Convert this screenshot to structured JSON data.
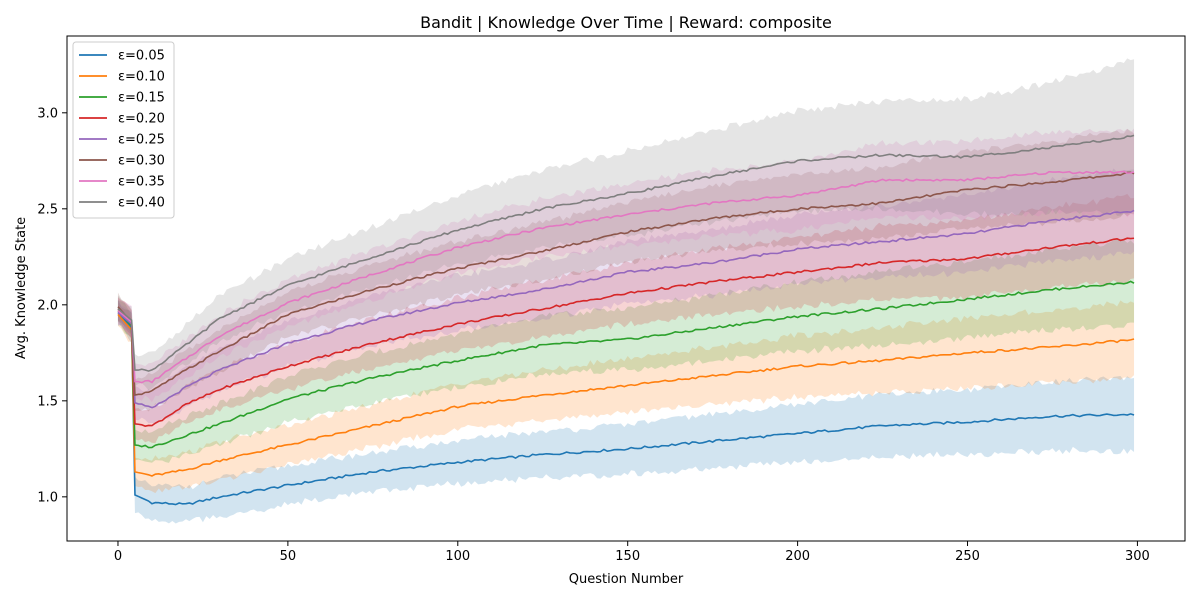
{
  "chart_data": {
    "type": "line",
    "title": "Bandit | Knowledge Over Time | Reward: composite",
    "xlabel": "Question Number",
    "ylabel": "Avg. Knowledge State",
    "xlim": [
      -15,
      314
    ],
    "ylim": [
      0.77,
      3.4
    ],
    "xticks": [
      0,
      50,
      100,
      150,
      200,
      250,
      300
    ],
    "yticks": [
      1.0,
      1.5,
      2.0,
      2.5,
      3.0
    ],
    "xtick_labels": [
      "0",
      "50",
      "100",
      "150",
      "200",
      "250",
      "300"
    ],
    "ytick_labels": [
      "1.0",
      "1.5",
      "2.0",
      "2.5",
      "3.0"
    ],
    "legend_position": "top-left",
    "grid": false,
    "band": "shaded band around each series",
    "series": [
      {
        "name": "ε=0.05",
        "color": "#1f77b4",
        "x": [
          0,
          4,
          5,
          10,
          20,
          30,
          50,
          75,
          100,
          125,
          150,
          175,
          200,
          225,
          250,
          275,
          300
        ],
        "y": [
          1.96,
          1.88,
          1.01,
          0.97,
          0.96,
          1.0,
          1.06,
          1.13,
          1.18,
          1.22,
          1.25,
          1.29,
          1.33,
          1.37,
          1.39,
          1.42,
          1.43
        ],
        "band": [
          0.06,
          0.07,
          0.08,
          0.09,
          0.09,
          0.1,
          0.1,
          0.1,
          0.11,
          0.12,
          0.13,
          0.14,
          0.15,
          0.16,
          0.17,
          0.18,
          0.19
        ]
      },
      {
        "name": "ε=0.10",
        "color": "#ff7f0e",
        "x": [
          0,
          4,
          5,
          10,
          20,
          30,
          50,
          75,
          100,
          125,
          150,
          175,
          200,
          225,
          250,
          275,
          300
        ],
        "y": [
          1.95,
          1.87,
          1.13,
          1.11,
          1.14,
          1.19,
          1.27,
          1.37,
          1.47,
          1.53,
          1.58,
          1.63,
          1.68,
          1.71,
          1.75,
          1.78,
          1.82
        ],
        "band": [
          0.06,
          0.07,
          0.08,
          0.09,
          0.09,
          0.1,
          0.1,
          0.11,
          0.12,
          0.13,
          0.14,
          0.15,
          0.16,
          0.17,
          0.18,
          0.19,
          0.2
        ]
      },
      {
        "name": "ε=0.15",
        "color": "#2ca02c",
        "x": [
          0,
          4,
          5,
          10,
          20,
          30,
          50,
          75,
          100,
          125,
          150,
          175,
          200,
          225,
          250,
          275,
          300
        ],
        "y": [
          1.97,
          1.89,
          1.27,
          1.26,
          1.32,
          1.38,
          1.51,
          1.62,
          1.71,
          1.79,
          1.82,
          1.88,
          1.94,
          1.98,
          2.03,
          2.08,
          2.12
        ],
        "band": [
          0.06,
          0.07,
          0.08,
          0.09,
          0.1,
          0.11,
          0.12,
          0.13,
          0.14,
          0.15,
          0.16,
          0.17,
          0.18,
          0.19,
          0.2,
          0.21,
          0.22
        ]
      },
      {
        "name": "ε=0.20",
        "color": "#d62728",
        "x": [
          0,
          4,
          5,
          10,
          20,
          30,
          50,
          75,
          100,
          125,
          150,
          175,
          200,
          225,
          250,
          275,
          300
        ],
        "y": [
          1.98,
          1.9,
          1.38,
          1.37,
          1.48,
          1.56,
          1.68,
          1.8,
          1.9,
          1.98,
          2.06,
          2.12,
          2.17,
          2.22,
          2.24,
          2.3,
          2.35
        ],
        "band": [
          0.06,
          0.07,
          0.08,
          0.09,
          0.1,
          0.11,
          0.12,
          0.13,
          0.14,
          0.15,
          0.16,
          0.17,
          0.18,
          0.19,
          0.2,
          0.21,
          0.22
        ]
      },
      {
        "name": "ε=0.25",
        "color": "#9467bd",
        "x": [
          0,
          4,
          5,
          10,
          20,
          30,
          50,
          75,
          100,
          125,
          150,
          175,
          200,
          225,
          250,
          275,
          300
        ],
        "y": [
          1.96,
          1.9,
          1.49,
          1.46,
          1.57,
          1.66,
          1.8,
          1.92,
          2.01,
          2.08,
          2.17,
          2.22,
          2.29,
          2.33,
          2.37,
          2.44,
          2.49
        ],
        "band": [
          0.06,
          0.07,
          0.08,
          0.09,
          0.1,
          0.11,
          0.12,
          0.13,
          0.14,
          0.15,
          0.16,
          0.17,
          0.18,
          0.19,
          0.2,
          0.21,
          0.22
        ]
      },
      {
        "name": "ε=0.30",
        "color": "#8c564b",
        "x": [
          0,
          4,
          5,
          10,
          20,
          30,
          50,
          75,
          100,
          125,
          150,
          175,
          200,
          225,
          250,
          275,
          300
        ],
        "y": [
          1.99,
          1.91,
          1.53,
          1.55,
          1.66,
          1.76,
          1.95,
          2.08,
          2.19,
          2.28,
          2.38,
          2.45,
          2.5,
          2.53,
          2.6,
          2.64,
          2.69
        ],
        "band": [
          0.06,
          0.07,
          0.08,
          0.09,
          0.1,
          0.11,
          0.12,
          0.13,
          0.14,
          0.15,
          0.16,
          0.17,
          0.18,
          0.19,
          0.2,
          0.21,
          0.22
        ]
      },
      {
        "name": "ε=0.35",
        "color": "#e377c2",
        "x": [
          0,
          4,
          5,
          10,
          20,
          30,
          50,
          75,
          100,
          125,
          150,
          175,
          200,
          225,
          250,
          275,
          300
        ],
        "y": [
          1.97,
          1.91,
          1.6,
          1.6,
          1.72,
          1.84,
          2.01,
          2.16,
          2.3,
          2.4,
          2.47,
          2.53,
          2.57,
          2.65,
          2.65,
          2.69,
          2.69
        ],
        "band": [
          0.06,
          0.07,
          0.08,
          0.09,
          0.1,
          0.11,
          0.12,
          0.13,
          0.14,
          0.15,
          0.16,
          0.17,
          0.18,
          0.19,
          0.2,
          0.21,
          0.22
        ]
      },
      {
        "name": "ε=0.40",
        "color": "#7f7f7f",
        "x": [
          0,
          4,
          5,
          10,
          20,
          30,
          50,
          75,
          100,
          125,
          150,
          175,
          200,
          225,
          250,
          275,
          300
        ],
        "y": [
          1.98,
          1.92,
          1.66,
          1.66,
          1.79,
          1.93,
          2.1,
          2.25,
          2.39,
          2.5,
          2.58,
          2.67,
          2.75,
          2.78,
          2.77,
          2.82,
          2.88
        ],
        "band": [
          0.06,
          0.07,
          0.08,
          0.09,
          0.1,
          0.12,
          0.14,
          0.16,
          0.18,
          0.2,
          0.22,
          0.24,
          0.26,
          0.28,
          0.3,
          0.34,
          0.4
        ]
      }
    ]
  }
}
